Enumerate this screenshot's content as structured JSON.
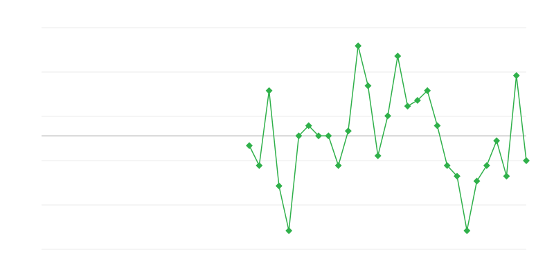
{
  "chart_data": {
    "type": "line",
    "title": "",
    "xlabel": "",
    "ylabel": "",
    "x_count": 50,
    "ylim": [
      -25.6,
      24.4
    ],
    "gridlines": [
      24.4,
      14.4,
      4.4,
      -5.6,
      -15.6,
      -25.6
    ],
    "baseline": 0,
    "grid": true,
    "legend": "none",
    "colors": {
      "series": "#2fb04a",
      "grid": "#ebebeb",
      "baseline": "#aaaaaa"
    },
    "series": [
      {
        "values": [
          null,
          null,
          null,
          null,
          null,
          null,
          null,
          null,
          null,
          null,
          null,
          null,
          null,
          null,
          null,
          null,
          null,
          null,
          null,
          null,
          null,
          -2.2,
          -6.7,
          10.2,
          -11.3,
          -21.4,
          0,
          2.3,
          0,
          0,
          -6.7,
          1.1,
          20.3,
          11.3,
          -4.5,
          4.5,
          18.0,
          6.7,
          8.0,
          10.2,
          2.3,
          -6.7,
          -9.1,
          -21.4,
          -10.2,
          -6.7,
          -1.1,
          -9.1,
          13.6,
          -5.6
        ]
      }
    ]
  }
}
